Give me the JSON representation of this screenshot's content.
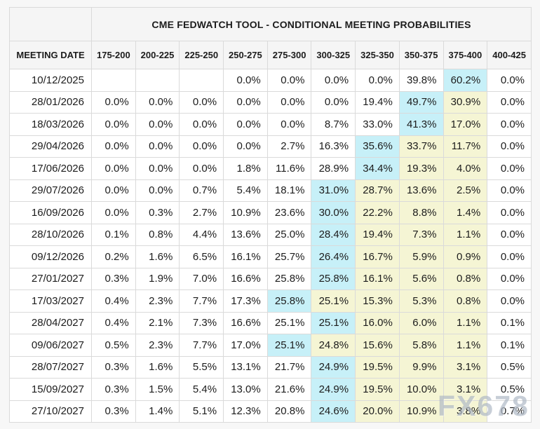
{
  "table": {
    "title": "CME FEDWATCH TOOL - CONDITIONAL MEETING PROBABILITIES",
    "columns": [
      "MEETING DATE",
      "175-200",
      "200-225",
      "225-250",
      "250-275",
      "275-300",
      "300-325",
      "325-350",
      "350-375",
      "375-400",
      "400-425"
    ],
    "rows": [
      {
        "date": "10/12/2025",
        "values": [
          "",
          "",
          "",
          "0.0%",
          "0.0%",
          "0.0%",
          "0.0%",
          "39.8%",
          "60.2%",
          "0.0%"
        ],
        "styles": [
          "w",
          "w",
          "w",
          "w",
          "w",
          "w",
          "w",
          "w",
          "c",
          "w"
        ]
      },
      {
        "date": "28/01/2026",
        "values": [
          "0.0%",
          "0.0%",
          "0.0%",
          "0.0%",
          "0.0%",
          "0.0%",
          "19.4%",
          "49.7%",
          "30.9%",
          "0.0%"
        ],
        "styles": [
          "w",
          "w",
          "w",
          "w",
          "w",
          "w",
          "w",
          "c",
          "y",
          "w"
        ]
      },
      {
        "date": "18/03/2026",
        "values": [
          "0.0%",
          "0.0%",
          "0.0%",
          "0.0%",
          "0.0%",
          "8.7%",
          "33.0%",
          "41.3%",
          "17.0%",
          "0.0%"
        ],
        "styles": [
          "w",
          "w",
          "w",
          "w",
          "w",
          "w",
          "w",
          "c",
          "y",
          "w"
        ]
      },
      {
        "date": "29/04/2026",
        "values": [
          "0.0%",
          "0.0%",
          "0.0%",
          "0.0%",
          "2.7%",
          "16.3%",
          "35.6%",
          "33.7%",
          "11.7%",
          "0.0%"
        ],
        "styles": [
          "w",
          "w",
          "w",
          "w",
          "w",
          "w",
          "c",
          "y",
          "y",
          "w"
        ]
      },
      {
        "date": "17/06/2026",
        "values": [
          "0.0%",
          "0.0%",
          "0.0%",
          "1.8%",
          "11.6%",
          "28.9%",
          "34.4%",
          "19.3%",
          "4.0%",
          "0.0%"
        ],
        "styles": [
          "w",
          "w",
          "w",
          "w",
          "w",
          "w",
          "c",
          "y",
          "y",
          "w"
        ]
      },
      {
        "date": "29/07/2026",
        "values": [
          "0.0%",
          "0.0%",
          "0.7%",
          "5.4%",
          "18.1%",
          "31.0%",
          "28.7%",
          "13.6%",
          "2.5%",
          "0.0%"
        ],
        "styles": [
          "w",
          "w",
          "w",
          "w",
          "w",
          "c",
          "y",
          "y",
          "y",
          "w"
        ]
      },
      {
        "date": "16/09/2026",
        "values": [
          "0.0%",
          "0.3%",
          "2.7%",
          "10.9%",
          "23.6%",
          "30.0%",
          "22.2%",
          "8.8%",
          "1.4%",
          "0.0%"
        ],
        "styles": [
          "w",
          "w",
          "w",
          "w",
          "w",
          "c",
          "y",
          "y",
          "y",
          "w"
        ]
      },
      {
        "date": "28/10/2026",
        "values": [
          "0.1%",
          "0.8%",
          "4.4%",
          "13.6%",
          "25.0%",
          "28.4%",
          "19.4%",
          "7.3%",
          "1.1%",
          "0.0%"
        ],
        "styles": [
          "w",
          "w",
          "w",
          "w",
          "w",
          "c",
          "y",
          "y",
          "y",
          "w"
        ]
      },
      {
        "date": "09/12/2026",
        "values": [
          "0.2%",
          "1.6%",
          "6.5%",
          "16.1%",
          "25.7%",
          "26.4%",
          "16.7%",
          "5.9%",
          "0.9%",
          "0.0%"
        ],
        "styles": [
          "w",
          "w",
          "w",
          "w",
          "w",
          "c",
          "y",
          "y",
          "y",
          "w"
        ]
      },
      {
        "date": "27/01/2027",
        "values": [
          "0.3%",
          "1.9%",
          "7.0%",
          "16.6%",
          "25.8%",
          "25.8%",
          "16.1%",
          "5.6%",
          "0.8%",
          "0.0%"
        ],
        "styles": [
          "w",
          "w",
          "w",
          "w",
          "w",
          "c",
          "y",
          "y",
          "y",
          "w"
        ]
      },
      {
        "date": "17/03/2027",
        "values": [
          "0.4%",
          "2.3%",
          "7.7%",
          "17.3%",
          "25.8%",
          "25.1%",
          "15.3%",
          "5.3%",
          "0.8%",
          "0.0%"
        ],
        "styles": [
          "w",
          "w",
          "w",
          "w",
          "c",
          "y",
          "y",
          "y",
          "y",
          "w"
        ]
      },
      {
        "date": "28/04/2027",
        "values": [
          "0.4%",
          "2.1%",
          "7.3%",
          "16.6%",
          "25.1%",
          "25.1%",
          "16.0%",
          "6.0%",
          "1.1%",
          "0.1%"
        ],
        "styles": [
          "w",
          "w",
          "w",
          "w",
          "w",
          "c",
          "y",
          "y",
          "y",
          "w"
        ]
      },
      {
        "date": "09/06/2027",
        "values": [
          "0.5%",
          "2.3%",
          "7.7%",
          "17.0%",
          "25.1%",
          "24.8%",
          "15.6%",
          "5.8%",
          "1.1%",
          "0.1%"
        ],
        "styles": [
          "w",
          "w",
          "w",
          "w",
          "c",
          "y",
          "y",
          "y",
          "y",
          "w"
        ]
      },
      {
        "date": "28/07/2027",
        "values": [
          "0.3%",
          "1.6%",
          "5.5%",
          "13.1%",
          "21.7%",
          "24.9%",
          "19.5%",
          "9.9%",
          "3.1%",
          "0.5%"
        ],
        "styles": [
          "w",
          "w",
          "w",
          "w",
          "w",
          "c",
          "y",
          "y",
          "y",
          "w"
        ]
      },
      {
        "date": "15/09/2027",
        "values": [
          "0.3%",
          "1.5%",
          "5.4%",
          "13.0%",
          "21.6%",
          "24.9%",
          "19.5%",
          "10.0%",
          "3.1%",
          "0.5%"
        ],
        "styles": [
          "w",
          "w",
          "w",
          "w",
          "w",
          "c",
          "y",
          "y",
          "y",
          "w"
        ]
      },
      {
        "date": "27/10/2027",
        "values": [
          "0.3%",
          "1.4%",
          "5.1%",
          "12.3%",
          "20.8%",
          "24.6%",
          "20.0%",
          "10.9%",
          "3.8%",
          "0.7%"
        ],
        "styles": [
          "w",
          "w",
          "w",
          "w",
          "w",
          "c",
          "y",
          "y",
          "y",
          "w"
        ]
      }
    ]
  },
  "watermark": {
    "text": "FX678"
  },
  "colors": {
    "highlight_cyan": "#c7f0f8",
    "highlight_yellow": "#f5f5d4",
    "header_background": "#f5f5f5",
    "page_background": "#f7f7f7",
    "border": "#dadada"
  }
}
